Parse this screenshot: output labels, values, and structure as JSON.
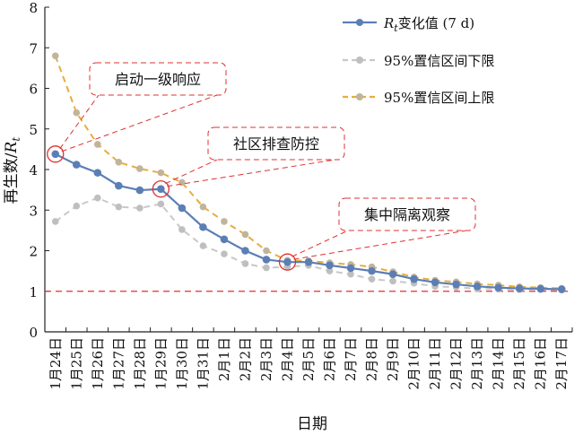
{
  "chart_data": {
    "type": "line",
    "xlabel": "日期",
    "ylabel": "再生数/",
    "ylabel_symbol": "R",
    "ylabel_sub": "t",
    "ylim": [
      0,
      8
    ],
    "yticks": [
      0,
      1,
      2,
      3,
      4,
      5,
      6,
      7,
      8
    ],
    "categories": [
      "1月24日",
      "1月25日",
      "1月26日",
      "1月27日",
      "1月28日",
      "1月29日",
      "1月30日",
      "1月31日",
      "2月1日",
      "2月2日",
      "2月3日",
      "2月4日",
      "2月5日",
      "2月6日",
      "2月7日",
      "2月8日",
      "2月9日",
      "2月10日",
      "2月11日",
      "2月12日",
      "2月13日",
      "2月14日",
      "2月15日",
      "2月16日",
      "2月17日"
    ],
    "series": [
      {
        "key": "rt",
        "name": "变化值 (7 d)",
        "name_symbol": "R",
        "name_sub": "t",
        "color": "#5b7fb5",
        "dash": "solid",
        "values": [
          4.38,
          4.12,
          3.92,
          3.6,
          3.49,
          3.52,
          3.05,
          2.58,
          2.28,
          2.0,
          1.78,
          1.72,
          1.72,
          1.64,
          1.57,
          1.5,
          1.42,
          1.3,
          1.22,
          1.17,
          1.12,
          1.09,
          1.07,
          1.06,
          1.05
        ]
      },
      {
        "key": "lower",
        "name": "95%置信区间下限",
        "color": "#c8c8c8",
        "dash": "dashed",
        "values": [
          2.72,
          3.1,
          3.3,
          3.08,
          3.05,
          3.15,
          2.52,
          2.12,
          1.92,
          1.68,
          1.58,
          1.6,
          1.64,
          1.5,
          1.42,
          1.3,
          1.25,
          1.2,
          1.12,
          1.1,
          1.06,
          1.05,
          1.04,
          1.05,
          1.03
        ]
      },
      {
        "key": "upper",
        "name": "95%置信区间上限",
        "color": "#e8ad3c",
        "dash": "dashed",
        "values": [
          6.8,
          5.4,
          4.62,
          4.18,
          4.02,
          3.92,
          3.68,
          3.08,
          2.72,
          2.4,
          2.0,
          1.76,
          1.75,
          1.7,
          1.66,
          1.6,
          1.48,
          1.35,
          1.27,
          1.23,
          1.18,
          1.15,
          1.11,
          1.09,
          1.07
        ]
      }
    ],
    "reference_line": {
      "y": 1,
      "color": "#e03030",
      "dash": "dashed"
    },
    "annotations": [
      {
        "key": "response",
        "text": "启动一级响应",
        "category_index": 0,
        "series": "rt"
      },
      {
        "key": "community",
        "text": "社区排查防控",
        "category_index": 5,
        "series": "rt"
      },
      {
        "key": "isolation",
        "text": "集中隔离观察",
        "category_index": 11,
        "series": "rt"
      }
    ],
    "legend": {
      "position": "top-right"
    },
    "grid": false
  }
}
